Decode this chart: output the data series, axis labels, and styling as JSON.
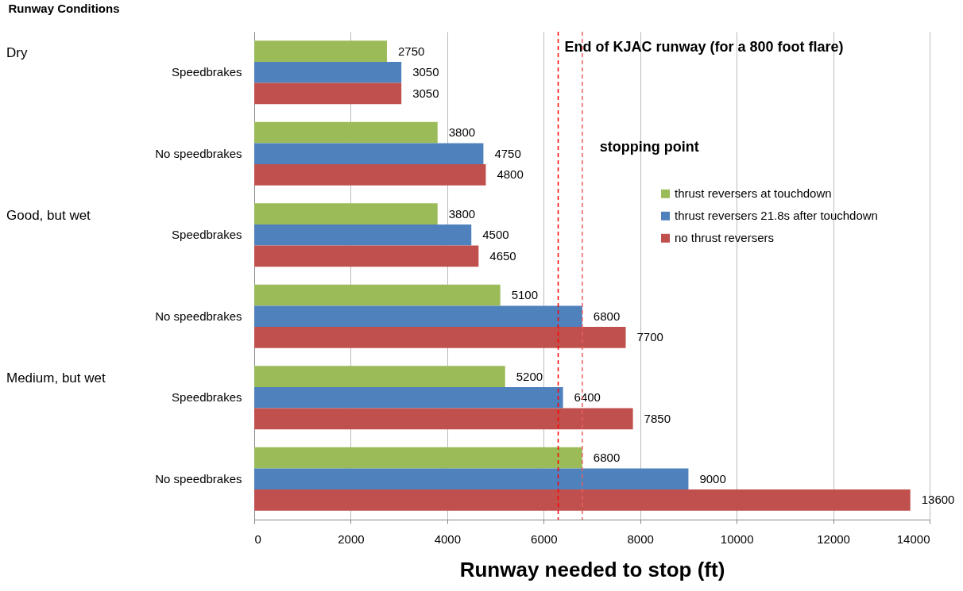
{
  "chart_data": {
    "type": "bar",
    "orientation": "horizontal",
    "ylabel": "Runway Conditions",
    "xlabel": "Runway needed to stop (ft)",
    "categories": [
      "Speedbrakes",
      "No speedbrakes",
      "Speedbrakes",
      "No speedbrakes",
      "Speedbrakes",
      "No speedbrakes"
    ],
    "series": [
      {
        "name": "thrust reversers at touchdown",
        "color": "#9bbb59",
        "values": [
          2750,
          3800,
          3800,
          5100,
          5200,
          6800
        ]
      },
      {
        "name": "thrust reversers 21.8s after touchdown",
        "color": "#4f81bd",
        "values": [
          3050,
          4750,
          4500,
          6800,
          6400,
          9000
        ]
      },
      {
        "name": "no thrust reversers",
        "color": "#c0504d",
        "values": [
          3050,
          4800,
          4650,
          7700,
          7850,
          13600
        ]
      }
    ],
    "xlim": [
      0,
      14000
    ],
    "xticks": [
      0,
      2000,
      4000,
      6000,
      8000,
      10000,
      12000,
      14000
    ],
    "grid": "x",
    "legend": "right",
    "data_labels": true,
    "annotations": [
      "Dry",
      "Good, but wet",
      "Medium, but wet"
    ],
    "ref_lines": [
      {
        "axis": "x",
        "value": 6300,
        "label": "End of KJAC runway (for a 800  foot flare)",
        "color": "#ff0000",
        "line_style": "dashed"
      },
      {
        "axis": "x",
        "value": 6800,
        "label": "stopping point",
        "color": "#e86060",
        "line_style": "dashed"
      }
    ]
  }
}
